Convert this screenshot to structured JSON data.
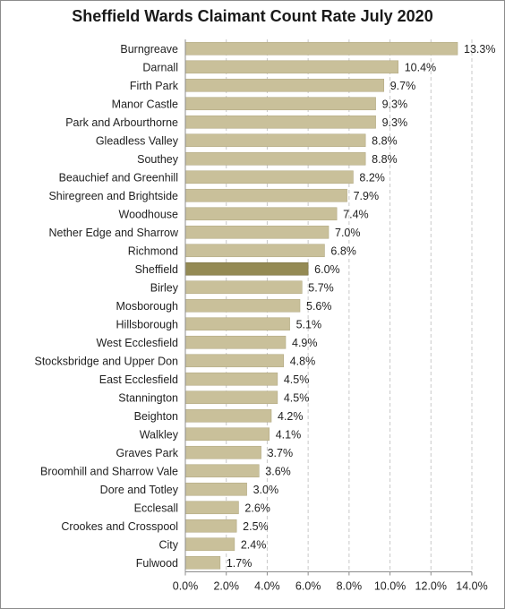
{
  "chart_data": {
    "type": "bar",
    "orientation": "horizontal",
    "title": "Sheffield Wards Claimant Count Rate July 2020",
    "xlim": [
      0,
      14
    ],
    "x_ticks": [
      "0.0%",
      "2.0%",
      "4.0%",
      "6.0%",
      "8.0%",
      "10.0%",
      "12.0%",
      "14.0%"
    ],
    "grid": "vertical dashed",
    "categories": [
      "Burngreave",
      "Darnall",
      "Firth Park",
      "Manor Castle",
      "Park and Arbourthorne",
      "Gleadless Valley",
      "Southey",
      "Beauchief and Greenhill",
      "Shiregreen and Brightside",
      "Woodhouse",
      "Nether Edge and Sharrow",
      "Richmond",
      "Sheffield",
      "Birley",
      "Mosborough",
      "Hillsborough",
      "West Ecclesfield",
      "Stocksbridge and Upper Don",
      "East Ecclesfield",
      "Stannington",
      "Beighton",
      "Walkley",
      "Graves Park",
      "Broomhill and Sharrow Vale",
      "Dore and Totley",
      "Ecclesall",
      "Crookes and Crosspool",
      "City",
      "Fulwood"
    ],
    "values": [
      13.3,
      10.4,
      9.7,
      9.3,
      9.3,
      8.8,
      8.8,
      8.2,
      7.9,
      7.4,
      7.0,
      6.8,
      6.0,
      5.7,
      5.6,
      5.1,
      4.9,
      4.8,
      4.5,
      4.5,
      4.2,
      4.1,
      3.7,
      3.6,
      3.0,
      2.6,
      2.5,
      2.4,
      1.7
    ],
    "value_labels": [
      "13.3%",
      "10.4%",
      "9.7%",
      "9.3%",
      "9.3%",
      "8.8%",
      "8.8%",
      "8.2%",
      "7.9%",
      "7.4%",
      "7.0%",
      "6.8%",
      "6.0%",
      "5.7%",
      "5.6%",
      "5.1%",
      "4.9%",
      "4.8%",
      "4.5%",
      "4.5%",
      "4.2%",
      "4.1%",
      "3.7%",
      "3.6%",
      "3.0%",
      "2.6%",
      "2.5%",
      "2.4%",
      "1.7%"
    ],
    "highlight_category": "Sheffield",
    "colors": {
      "bar": "#c9c09a",
      "bar_highlight": "#948a54",
      "grid": "#c8c8c8",
      "axis": "#8c8c8c"
    }
  }
}
